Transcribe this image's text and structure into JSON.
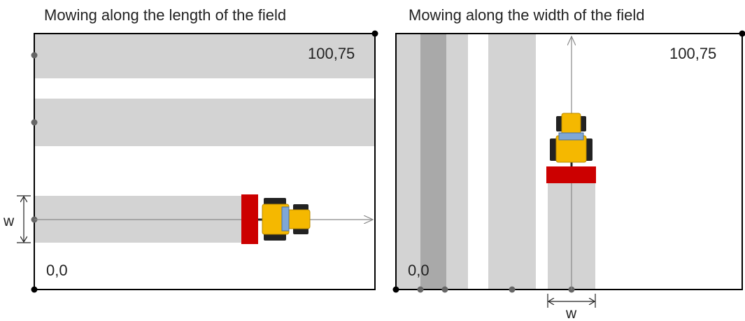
{
  "left_panel": {
    "title": "Mowing along the length of the field",
    "corner_top_right": "100,75",
    "corner_bottom_left": "0,0",
    "width_label": "w"
  },
  "right_panel": {
    "title": "Mowing along the width of the field",
    "corner_top_right": "100,75",
    "corner_bottom_left": "0,0",
    "width_label": "w"
  },
  "colors": {
    "field_border": "#000000",
    "mowed_strip": "#d3d3d3",
    "overlap_strip": "#a9a9a9",
    "mower_deck": "#cc0000",
    "tractor_body": "#f5b800",
    "tractor_cab": "#7fa7d6",
    "tire": "#222222",
    "marker": "#666666",
    "path_arrow": "#888888"
  },
  "icons": {
    "vehicle": "tractor-with-mower-icon"
  }
}
